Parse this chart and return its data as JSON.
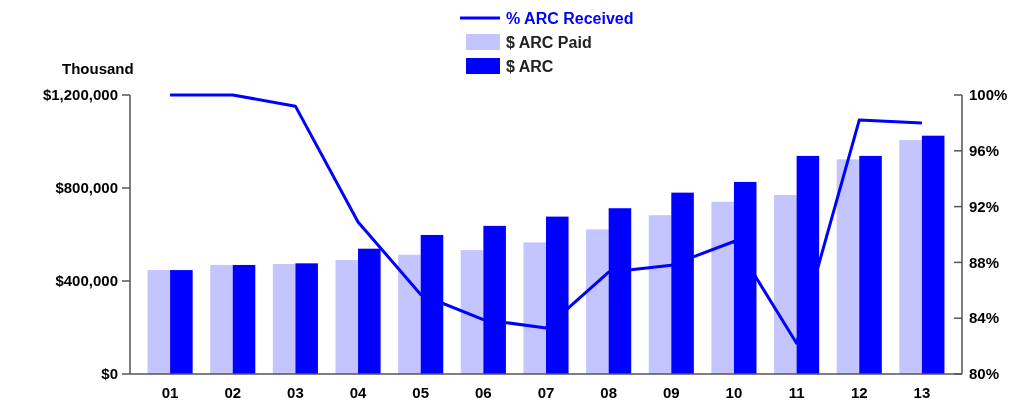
{
  "chart_data": {
    "type": "bar",
    "ylabel": "Thousand",
    "categories": [
      "01",
      "02",
      "03",
      "04",
      "05",
      "06",
      "07",
      "08",
      "09",
      "10",
      "11",
      "12",
      "13"
    ],
    "series": [
      {
        "name": "% ARC Received",
        "type": "line",
        "axis": "y2",
        "color": "#0000ff",
        "values": [
          100,
          100,
          99.2,
          90.9,
          85.7,
          83.9,
          83.3,
          87.3,
          87.8,
          89.5,
          82.2,
          98.2,
          98.0
        ]
      },
      {
        "name": "$ ARC Paid",
        "color": "#c4c4ff",
        "values": [
          447000,
          469000,
          473000,
          490000,
          513000,
          533000,
          566000,
          622000,
          683000,
          741000,
          770000,
          923000,
          1006000
        ]
      },
      {
        "name": "$ ARC",
        "color": "#0000ff",
        "values": [
          447000,
          469000,
          476000,
          539000,
          598000,
          637000,
          677000,
          713000,
          780000,
          826000,
          938000,
          938000,
          1025000
        ]
      }
    ],
    "ylim": [
      0,
      1200000
    ],
    "yticks": [
      {
        "value": 0,
        "label": "$0"
      },
      {
        "value": 400000,
        "label": "$400,000"
      },
      {
        "value": 800000,
        "label": "$800,000"
      },
      {
        "value": 1200000,
        "label": "$1,200,000"
      }
    ],
    "y2lim": [
      80,
      100
    ],
    "y2ticks": [
      {
        "value": 80,
        "label": "80%"
      },
      {
        "value": 84,
        "label": "84%"
      },
      {
        "value": 88,
        "label": "88%"
      },
      {
        "value": 92,
        "label": "92%"
      },
      {
        "value": 96,
        "label": "96%"
      },
      {
        "value": 100,
        "label": "100%"
      }
    ],
    "grid": false,
    "legend": "top"
  }
}
